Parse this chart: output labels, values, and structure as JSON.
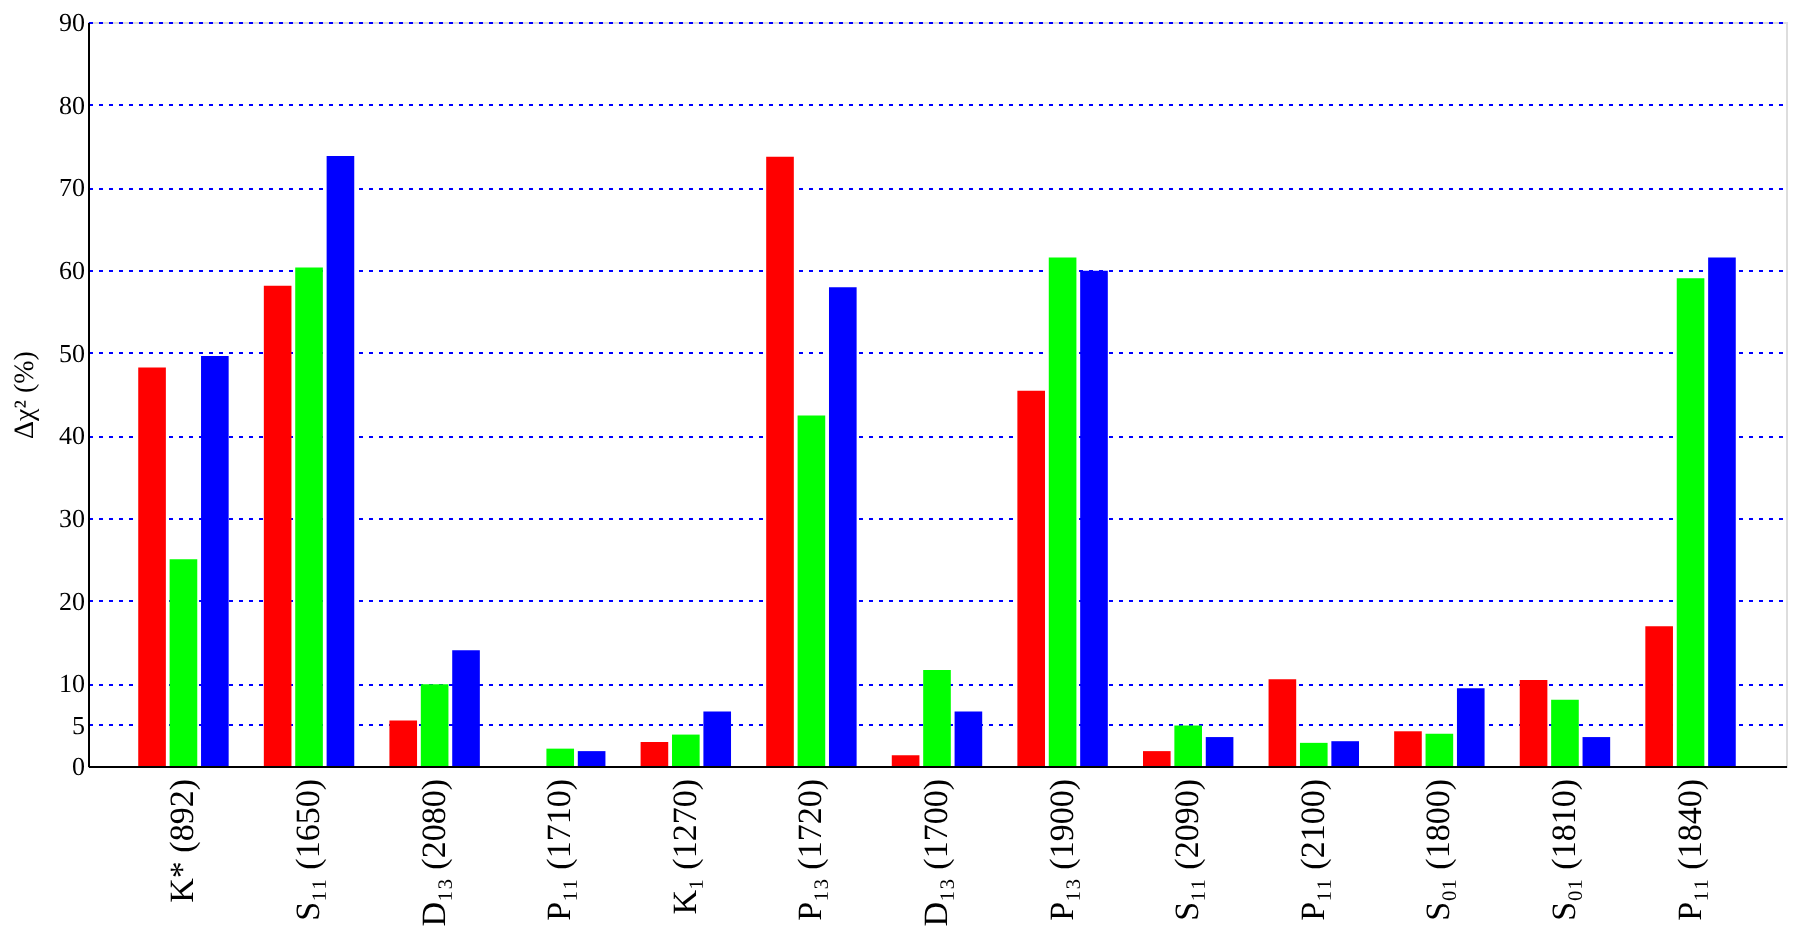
{
  "chart_data": {
    "type": "bar",
    "ylabel": "Δχ² (%)",
    "categories": [
      "K* (892)",
      "S₁₁ (1650)",
      "D₁₃ (2080)",
      "P₁₁ (1710)",
      "K₁ (1270)",
      "P₁₃ (1720)",
      "D₁₃ (1700)",
      "P₁₃ (1900)",
      "S₁₁ (2090)",
      "P₁₁ (2100)",
      "S₀₁ (1800)",
      "S₀₁ (1810)",
      "P₁₁ (1840)"
    ],
    "series": [
      {
        "color": "#ff0000",
        "values": [
          48.2,
          58.1,
          5.5,
          0,
          2.9,
          73.7,
          1.3,
          45.4,
          1.8,
          10.5,
          4.2,
          10.4,
          16.9
        ]
      },
      {
        "color": "#00ff00",
        "values": [
          25.0,
          60.3,
          9.9,
          2.1,
          3.8,
          42.4,
          11.6,
          61.5,
          4.9,
          2.8,
          3.9,
          8.0,
          59.0
        ]
      },
      {
        "color": "#0000ff",
        "values": [
          49.6,
          73.8,
          14.0,
          1.8,
          6.6,
          57.9,
          6.6,
          59.9,
          3.5,
          3.0,
          9.4,
          3.5,
          61.5
        ]
      }
    ],
    "ylim": [
      0,
      90
    ],
    "yticks": [
      0,
      5,
      10,
      20,
      30,
      40,
      50,
      60,
      70,
      80,
      90
    ],
    "grid": "y"
  }
}
